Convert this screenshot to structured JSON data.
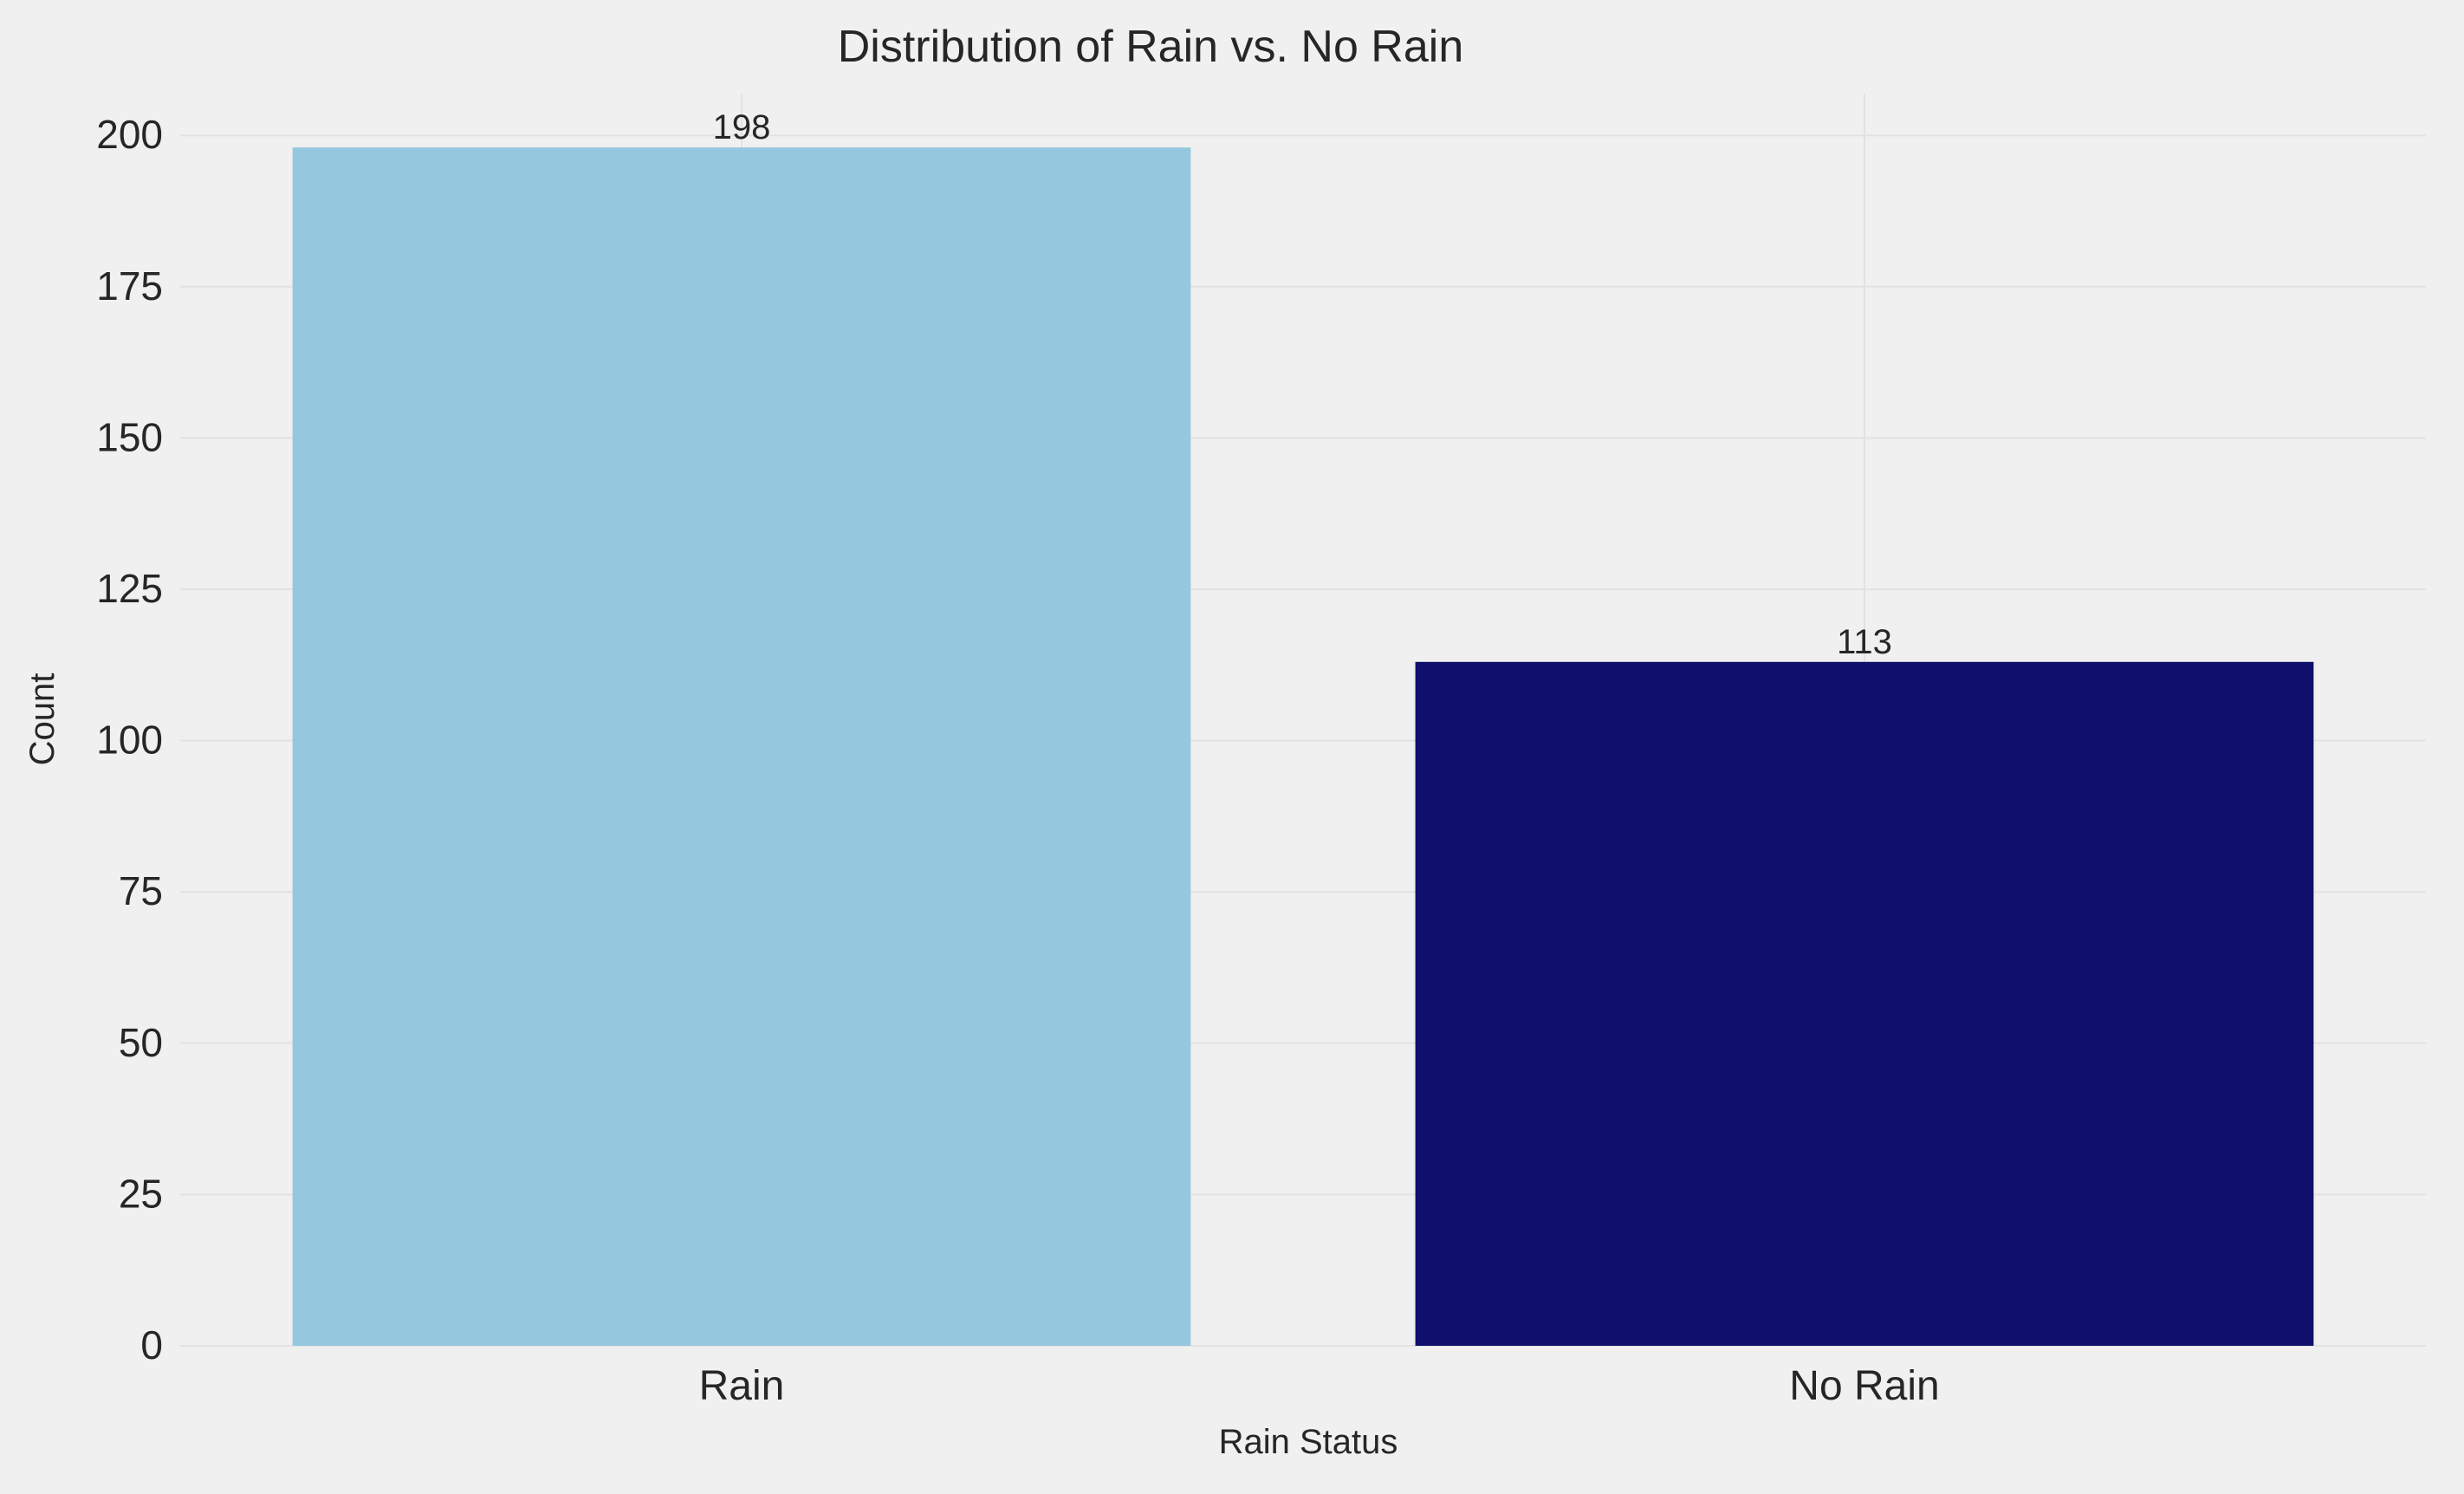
{
  "chart_data": {
    "type": "bar",
    "title": "Distribution of Rain vs. No Rain",
    "xlabel": "Rain Status",
    "ylabel": "Count",
    "categories": [
      "Rain",
      "No Rain"
    ],
    "values": [
      198,
      113
    ],
    "data_labels": [
      "198",
      "113"
    ],
    "ylim": [
      0,
      206.9
    ],
    "yticks": [
      0,
      25,
      50,
      75,
      100,
      125,
      150,
      175,
      200
    ],
    "grid": true,
    "colors": [
      "#95c8de",
      "#0f0f6c"
    ],
    "background": "#f0f0f0",
    "grid_color": "#e2e2e2"
  }
}
